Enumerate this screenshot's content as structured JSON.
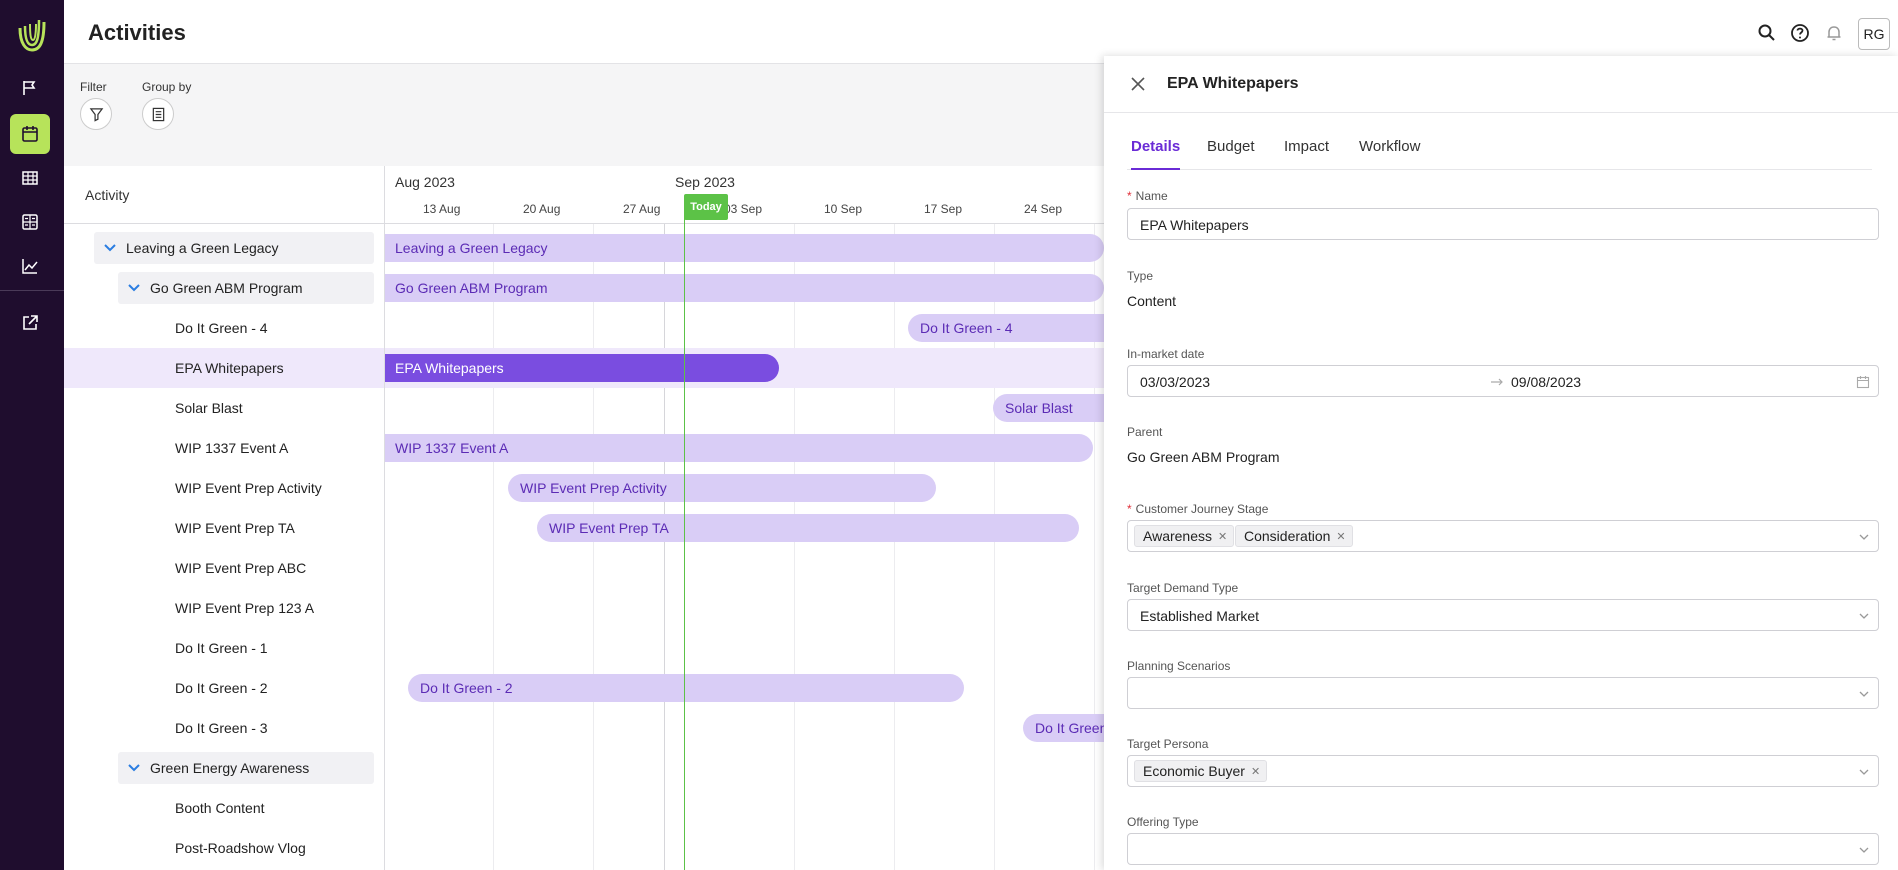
{
  "app": {
    "page_title": "Activities",
    "user_initials": "RG"
  },
  "toolbar": {
    "filter_label": "Filter",
    "groupby_label": "Group by"
  },
  "gantt": {
    "activity_header": "Activity",
    "months": [
      "Aug 2023",
      "Sep 2023"
    ],
    "weeks": [
      "13 Aug",
      "20 Aug",
      "27 Aug",
      "03 Sep",
      "10 Sep",
      "17 Sep",
      "24 Sep"
    ],
    "today_label": "Today",
    "rows": [
      {
        "label": "Leaving a Green Legacy",
        "bar": "Leaving a Green Legacy"
      },
      {
        "label": "Go Green ABM Program",
        "bar": "Go Green ABM Program"
      },
      {
        "label": "Do It Green - 4",
        "bar": "Do It Green - 4"
      },
      {
        "label": "EPA Whitepapers",
        "bar": "EPA Whitepapers"
      },
      {
        "label": "Solar Blast",
        "bar": "Solar Blast"
      },
      {
        "label": "WIP 1337 Event A",
        "bar": "WIP 1337 Event A"
      },
      {
        "label": "WIP Event Prep Activity",
        "bar": "WIP Event Prep Activity"
      },
      {
        "label": "WIP Event Prep TA",
        "bar": "WIP Event Prep TA"
      },
      {
        "label": "WIP Event Prep ABC"
      },
      {
        "label": "WIP Event Prep 123 A"
      },
      {
        "label": "Do It Green - 1"
      },
      {
        "label": "Do It Green - 2",
        "bar": "Do It Green - 2"
      },
      {
        "label": "Do It Green - 3",
        "bar": "Do It Green"
      },
      {
        "label": "Green Energy Awareness"
      },
      {
        "label": "Booth Content"
      },
      {
        "label": "Post-Roadshow Vlog"
      }
    ]
  },
  "drawer": {
    "title": "EPA Whitepapers",
    "tabs": [
      "Details",
      "Budget",
      "Impact",
      "Workflow"
    ],
    "fields": {
      "name_label": "Name",
      "name_value": "EPA Whitepapers",
      "type_label": "Type",
      "type_value": "Content",
      "date_label": "In-market date",
      "date_start": "03/03/2023",
      "date_end": "09/08/2023",
      "parent_label": "Parent",
      "parent_value": "Go Green ABM Program",
      "stage_label": "Customer Journey Stage",
      "stage_tags": [
        "Awareness",
        "Consideration"
      ],
      "demand_label": "Target Demand Type",
      "demand_value": "Established Market",
      "scenarios_label": "Planning Scenarios",
      "persona_label": "Target Persona",
      "persona_tags": [
        "Economic Buyer"
      ],
      "offering_label": "Offering Type"
    }
  },
  "colors": {
    "nav_bg": "#1f0d2e",
    "nav_active": "#b7e35a",
    "bar": "#d9cdf6",
    "bar_selected": "#7a4de0",
    "today": "#5cc247",
    "accent": "#6a2bd6"
  }
}
